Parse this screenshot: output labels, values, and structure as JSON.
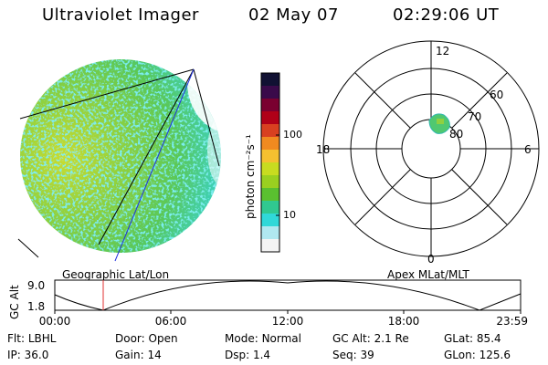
{
  "header": {
    "instrument": "Ultraviolet Imager",
    "date": "02 May 07",
    "time": "02:29:06 UT"
  },
  "colorbar": {
    "unit_label": "photon cm⁻²s⁻¹",
    "ticks": [
      "100",
      "10"
    ],
    "colors": [
      "#111133",
      "#3a0a4a",
      "#7a0030",
      "#b00018",
      "#d84020",
      "#f08a20",
      "#f5c030",
      "#c8dc20",
      "#9ad020",
      "#5ac030",
      "#30c890",
      "#30d8d8",
      "#b0e8f0",
      "#f4f4f4"
    ]
  },
  "polar": {
    "ring_labels": [
      "60",
      "70",
      "80"
    ],
    "mlt_labels": {
      "top": "12",
      "left": "18",
      "right": "6",
      "bottom": "0"
    }
  },
  "timeline": {
    "left_title": "Geographic Lat/Lon",
    "right_title": "Apex MLat/MLT",
    "axis_label": "GC Alt",
    "y_ticks": [
      "9.0",
      "1.8"
    ],
    "x_ticks": [
      "00:00",
      "06:00",
      "12:00",
      "18:00",
      "23:59"
    ],
    "marker_color": "#e03030"
  },
  "footer": {
    "row1": [
      {
        "key": "Flt:",
        "value": "LBHL"
      },
      {
        "key": "Door:",
        "value": "Open"
      },
      {
        "key": "Mode:",
        "value": "Normal"
      },
      {
        "key": "GC Alt:",
        "value": "2.1 Re"
      },
      {
        "key": "GLat:",
        "value": "85.4"
      }
    ],
    "row2": [
      {
        "key": "IP:",
        "value": "36.0"
      },
      {
        "key": "Gain:",
        "value": "14"
      },
      {
        "key": "Dsp:",
        "value": "1.4"
      },
      {
        "key": "Seq:",
        "value": "39"
      },
      {
        "key": "GLon:",
        "value": "125.6"
      }
    ]
  }
}
